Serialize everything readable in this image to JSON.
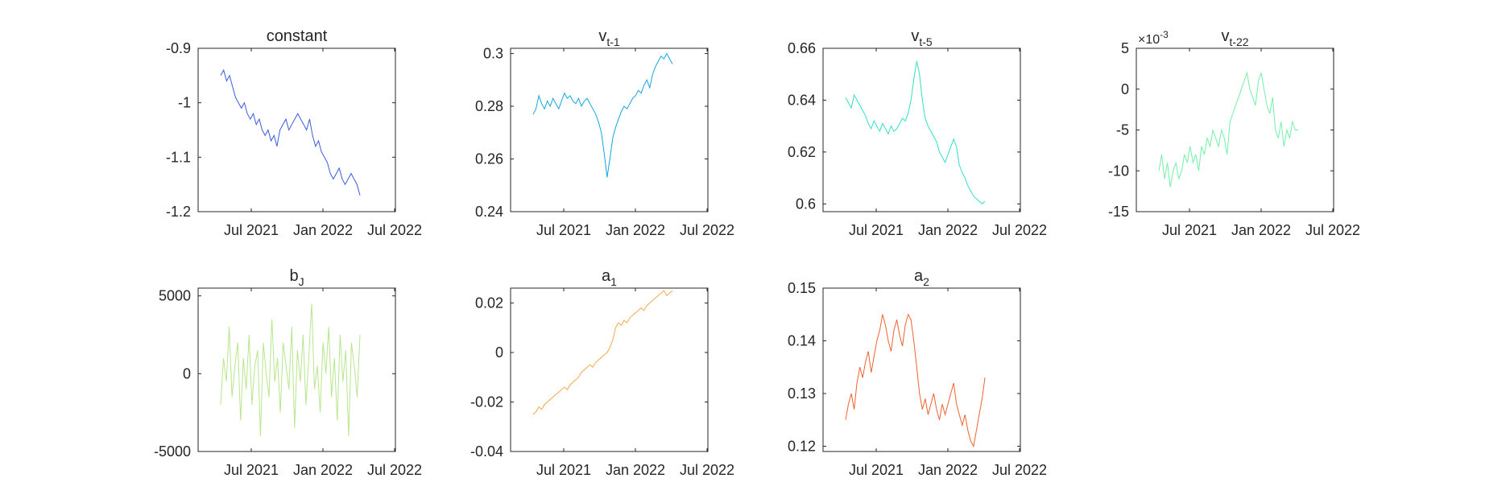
{
  "chart_data": [
    {
      "type": "line",
      "title": "constant",
      "color": "#3B5BDB",
      "x_ticks": [
        "Jul 2021",
        "Jan 2022",
        "Jul 2022"
      ],
      "ylim": [
        -1.2,
        -0.9
      ],
      "y_ticks": [
        {
          "value": -1.2,
          "label": "-1.2"
        },
        {
          "value": -1.1,
          "label": "-1.1"
        },
        {
          "value": -1.0,
          "label": "-1"
        },
        {
          "value": -0.9,
          "label": "-0.9"
        }
      ],
      "series": [
        {
          "values": [
            -0.95,
            -0.94,
            -0.96,
            -0.95,
            -0.97,
            -0.99,
            -1.0,
            -1.01,
            -1.0,
            -1.02,
            -1.03,
            -1.02,
            -1.04,
            -1.03,
            -1.05,
            -1.06,
            -1.05,
            -1.07,
            -1.06,
            -1.08,
            -1.05,
            -1.04,
            -1.03,
            -1.05,
            -1.04,
            -1.03,
            -1.02,
            -1.03,
            -1.04,
            -1.05,
            -1.03,
            -1.06,
            -1.08,
            -1.07,
            -1.09,
            -1.1,
            -1.11,
            -1.13,
            -1.14,
            -1.13,
            -1.12,
            -1.14,
            -1.15,
            -1.14,
            -1.13,
            -1.14,
            -1.15,
            -1.17
          ]
        }
      ]
    },
    {
      "type": "line",
      "title": "v",
      "title_sub": "t-1",
      "color": "#12A5E0",
      "x_ticks": [
        "Jul 2021",
        "Jan 2022",
        "Jul 2022"
      ],
      "ylim": [
        0.24,
        0.302
      ],
      "y_ticks": [
        {
          "value": 0.24,
          "label": "0.24"
        },
        {
          "value": 0.26,
          "label": "0.26"
        },
        {
          "value": 0.28,
          "label": "0.28"
        },
        {
          "value": 0.3,
          "label": "0.3"
        }
      ],
      "series": [
        {
          "values": [
            0.277,
            0.279,
            0.284,
            0.281,
            0.279,
            0.282,
            0.28,
            0.283,
            0.281,
            0.279,
            0.282,
            0.285,
            0.283,
            0.284,
            0.282,
            0.281,
            0.283,
            0.28,
            0.282,
            0.283,
            0.281,
            0.279,
            0.277,
            0.274,
            0.27,
            0.262,
            0.253,
            0.26,
            0.268,
            0.272,
            0.275,
            0.278,
            0.28,
            0.279,
            0.281,
            0.283,
            0.284,
            0.286,
            0.285,
            0.288,
            0.29,
            0.287,
            0.292,
            0.295,
            0.297,
            0.299,
            0.298,
            0.3,
            0.298,
            0.296
          ]
        }
      ]
    },
    {
      "type": "line",
      "title": "v",
      "title_sub": "t-5",
      "color": "#2FE0C8",
      "x_ticks": [
        "Jul 2021",
        "Jan 2022",
        "Jul 2022"
      ],
      "ylim": [
        0.597,
        0.66
      ],
      "y_ticks": [
        {
          "value": 0.6,
          "label": "0.6"
        },
        {
          "value": 0.62,
          "label": "0.62"
        },
        {
          "value": 0.64,
          "label": "0.64"
        },
        {
          "value": 0.66,
          "label": "0.66"
        }
      ],
      "series": [
        {
          "values": [
            0.641,
            0.639,
            0.637,
            0.642,
            0.64,
            0.638,
            0.636,
            0.634,
            0.631,
            0.629,
            0.632,
            0.63,
            0.628,
            0.631,
            0.629,
            0.627,
            0.63,
            0.628,
            0.629,
            0.631,
            0.633,
            0.632,
            0.635,
            0.64,
            0.648,
            0.655,
            0.65,
            0.64,
            0.633,
            0.63,
            0.628,
            0.626,
            0.624,
            0.62,
            0.618,
            0.616,
            0.619,
            0.622,
            0.625,
            0.622,
            0.615,
            0.612,
            0.61,
            0.607,
            0.605,
            0.603,
            0.602,
            0.601,
            0.6,
            0.601
          ]
        }
      ]
    },
    {
      "type": "line",
      "title": "v",
      "title_sub": "t-22",
      "exponent": "×10",
      "exponent_power": "-3",
      "color": "#73F0A8",
      "x_ticks": [
        "Jul 2021",
        "Jan 2022",
        "Jul 2022"
      ],
      "ylim": [
        -15,
        5
      ],
      "y_ticks": [
        {
          "value": -15,
          "label": "-15"
        },
        {
          "value": -10,
          "label": "-10"
        },
        {
          "value": -5,
          "label": "-5"
        },
        {
          "value": 0,
          "label": "0"
        },
        {
          "value": 5,
          "label": "5"
        }
      ],
      "series": [
        {
          "values": [
            -10,
            -8,
            -11,
            -9,
            -12,
            -10,
            -9,
            -11,
            -10,
            -8,
            -9,
            -7,
            -9,
            -8,
            -10,
            -7,
            -8,
            -6,
            -7,
            -5,
            -6,
            -7,
            -5,
            -6,
            -8,
            -4,
            -3,
            -2,
            -1,
            0,
            1,
            2,
            0,
            -1,
            -2,
            1,
            2,
            0,
            -2,
            -3,
            -1,
            -5,
            -6,
            -4,
            -7,
            -5,
            -6,
            -4,
            -5,
            -5
          ]
        }
      ]
    },
    {
      "type": "line",
      "title": "b",
      "title_sub": "J",
      "color": "#B8E68C",
      "x_ticks": [
        "Jul 2021",
        "Jan 2022",
        "Jul 2022"
      ],
      "ylim": [
        -5000,
        5500
      ],
      "y_ticks": [
        {
          "value": -5000,
          "label": "-5000"
        },
        {
          "value": 0,
          "label": "0"
        },
        {
          "value": 5000,
          "label": "5000"
        }
      ],
      "series": [
        {
          "values": [
            -2000,
            1000,
            -500,
            3000,
            -1500,
            500,
            2000,
            -3000,
            1000,
            -1000,
            2500,
            -2000,
            500,
            1500,
            -4000,
            2000,
            0,
            -1500,
            3500,
            -500,
            1000,
            -2500,
            2000,
            500,
            -1000,
            3000,
            -3500,
            1500,
            -500,
            2500,
            -2000,
            1000,
            4500,
            -1000,
            500,
            -2500,
            2000,
            0,
            3000,
            -1500,
            1000,
            -3000,
            2500,
            -500,
            1500,
            -4000,
            2000,
            500,
            -1500,
            2500
          ]
        }
      ]
    },
    {
      "type": "line",
      "title": "a",
      "title_sub": "1",
      "color": "#F5A848",
      "x_ticks": [
        "Jul 2021",
        "Jan 2022",
        "Jul 2022"
      ],
      "ylim": [
        -0.04,
        0.026
      ],
      "y_ticks": [
        {
          "value": -0.04,
          "label": "-0.04"
        },
        {
          "value": -0.02,
          "label": "-0.02"
        },
        {
          "value": 0,
          "label": "0"
        },
        {
          "value": 0.02,
          "label": "0.02"
        }
      ],
      "series": [
        {
          "values": [
            -0.025,
            -0.024,
            -0.022,
            -0.023,
            -0.021,
            -0.02,
            -0.019,
            -0.018,
            -0.017,
            -0.016,
            -0.015,
            -0.014,
            -0.015,
            -0.013,
            -0.012,
            -0.011,
            -0.01,
            -0.008,
            -0.007,
            -0.006,
            -0.005,
            -0.006,
            -0.004,
            -0.003,
            -0.002,
            -0.001,
            0.0,
            0.002,
            0.005,
            0.01,
            0.012,
            0.011,
            0.013,
            0.012,
            0.014,
            0.015,
            0.016,
            0.017,
            0.018,
            0.017,
            0.019,
            0.02,
            0.021,
            0.022,
            0.023,
            0.024,
            0.025,
            0.023,
            0.024,
            0.025
          ]
        }
      ]
    },
    {
      "type": "line",
      "title": "a",
      "title_sub": "2",
      "color": "#F0622E",
      "x_ticks": [
        "Jul 2021",
        "Jan 2022",
        "Jul 2022"
      ],
      "ylim": [
        0.119,
        0.15
      ],
      "y_ticks": [
        {
          "value": 0.12,
          "label": "0.12"
        },
        {
          "value": 0.13,
          "label": "0.13"
        },
        {
          "value": 0.14,
          "label": "0.14"
        },
        {
          "value": 0.15,
          "label": "0.15"
        }
      ],
      "series": [
        {
          "values": [
            0.125,
            0.128,
            0.13,
            0.127,
            0.132,
            0.135,
            0.133,
            0.136,
            0.138,
            0.134,
            0.137,
            0.14,
            0.142,
            0.145,
            0.143,
            0.14,
            0.138,
            0.142,
            0.144,
            0.141,
            0.139,
            0.143,
            0.145,
            0.144,
            0.14,
            0.135,
            0.13,
            0.127,
            0.129,
            0.126,
            0.128,
            0.13,
            0.127,
            0.125,
            0.128,
            0.126,
            0.128,
            0.13,
            0.132,
            0.128,
            0.126,
            0.124,
            0.126,
            0.123,
            0.121,
            0.12,
            0.123,
            0.126,
            0.129,
            0.133
          ]
        }
      ]
    }
  ]
}
